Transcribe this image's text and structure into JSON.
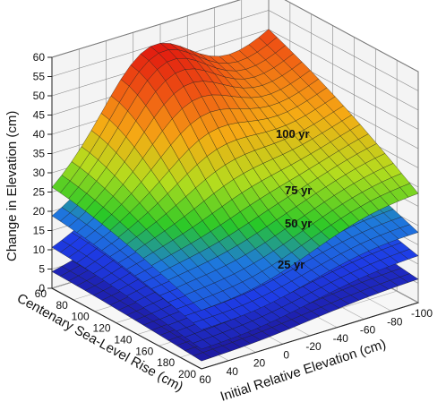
{
  "chart_data": {
    "type": "surface3d",
    "title": "",
    "zlabel": "Change in Elevation (cm)",
    "ylabel": "Centenary Sea-Level Rise (cm)",
    "xlabel": "Initial Relative Elevation (cm)",
    "z_ticks": [
      "0",
      "5",
      "10",
      "15",
      "20",
      "25",
      "30",
      "35",
      "40",
      "45",
      "50",
      "55",
      "60"
    ],
    "y_ticks": [
      "60",
      "80",
      "100",
      "120",
      "140",
      "160",
      "180",
      "200"
    ],
    "x_ticks": [
      "60",
      "40",
      "20",
      "0",
      "-20",
      "-40",
      "-60",
      "-80",
      "-100"
    ],
    "zlim": [
      0,
      60
    ],
    "ylim": [
      60,
      200
    ],
    "xlim": [
      60,
      -100
    ],
    "grid": true,
    "surfaces": [
      {
        "name": "25 yr",
        "corner_values": {
          "near_left": 2,
          "far_left": 4,
          "near_right": 6,
          "far_right": 10
        },
        "peak": {
          "x": -20,
          "y": 60,
          "value": 12
        },
        "label": "25 yr"
      },
      {
        "name": "50 yr",
        "corner_values": {
          "near_left": 5,
          "far_left": 10,
          "near_right": 12,
          "far_right": 20
        },
        "peak": {
          "x": -20,
          "y": 60,
          "value": 25
        },
        "label": "50 yr"
      },
      {
        "name": "75 yr",
        "corner_values": {
          "near_left": 10,
          "far_left": 18,
          "near_right": 18,
          "far_right": 30
        },
        "peak": {
          "x": -20,
          "y": 60,
          "value": 38
        },
        "label": "75 yr"
      },
      {
        "name": "100 yr",
        "corner_values": {
          "near_left": 15,
          "far_left": 25,
          "near_right": 28,
          "far_right": 50
        },
        "peak": {
          "x": -20,
          "y": 60,
          "value": 55
        },
        "label": "100 yr"
      }
    ]
  }
}
